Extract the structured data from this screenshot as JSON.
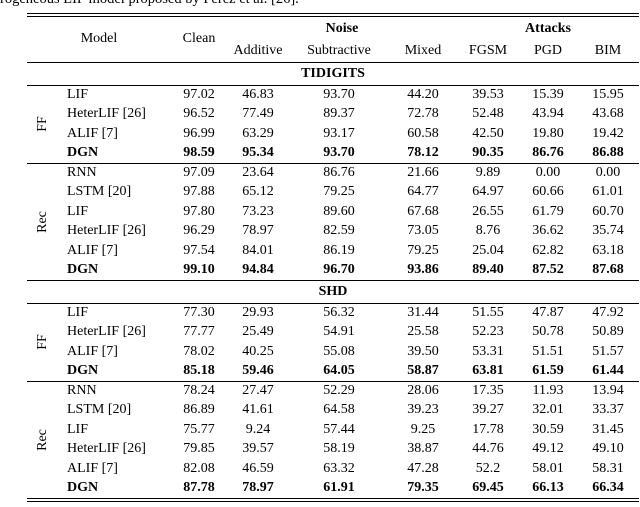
{
  "caption_fragment": "rogeneous LIF model proposed by Perez et al. [26].",
  "table": {
    "header": {
      "model": "Model",
      "clean": "Clean",
      "noise_group": "Noise",
      "attacks_group": "Attacks",
      "noise_cols": [
        "Additive",
        "Subtractive",
        "Mixed"
      ],
      "attack_cols": [
        "FGSM",
        "PGD",
        "BIM"
      ]
    },
    "sections": [
      {
        "title": "TIDIGITS",
        "groups": [
          {
            "label": "FF",
            "rows": [
              {
                "model": "LIF",
                "bold": false,
                "values": [
                  "97.02",
                  "46.83",
                  "93.70",
                  "44.20",
                  "39.53",
                  "15.39",
                  "15.95"
                ]
              },
              {
                "model": "HeterLIF [26]",
                "bold": false,
                "values": [
                  "96.52",
                  "77.49",
                  "89.37",
                  "72.78",
                  "52.48",
                  "43.94",
                  "43.68"
                ]
              },
              {
                "model": "ALIF [7]",
                "bold": false,
                "values": [
                  "96.99",
                  "63.29",
                  "93.17",
                  "60.58",
                  "42.50",
                  "19.80",
                  "19.42"
                ]
              },
              {
                "model": "DGN",
                "bold": true,
                "values": [
                  "98.59",
                  "95.34",
                  "93.70",
                  "78.12",
                  "90.35",
                  "86.76",
                  "86.88"
                ]
              }
            ]
          },
          {
            "label": "Rec",
            "rows": [
              {
                "model": "RNN",
                "bold": false,
                "values": [
                  "97.09",
                  "23.64",
                  "86.76",
                  "21.66",
                  "9.89",
                  "0.00",
                  "0.00"
                ]
              },
              {
                "model": "LSTM [20]",
                "bold": false,
                "values": [
                  "97.88",
                  "65.12",
                  "79.25",
                  "64.77",
                  "64.97",
                  "60.66",
                  "61.01"
                ]
              },
              {
                "model": "LIF",
                "bold": false,
                "values": [
                  "97.80",
                  "73.23",
                  "89.60",
                  "67.68",
                  "26.55",
                  "61.79",
                  "60.70"
                ]
              },
              {
                "model": "HeterLIF [26]",
                "bold": false,
                "values": [
                  "96.29",
                  "78.97",
                  "82.59",
                  "73.05",
                  "8.76",
                  "36.62",
                  "35.74"
                ]
              },
              {
                "model": "ALIF [7]",
                "bold": false,
                "values": [
                  "97.54",
                  "84.01",
                  "86.19",
                  "79.25",
                  "25.04",
                  "62.82",
                  "63.18"
                ]
              },
              {
                "model": "DGN",
                "bold": true,
                "values": [
                  "99.10",
                  "94.84",
                  "96.70",
                  "93.86",
                  "89.40",
                  "87.52",
                  "87.68"
                ]
              }
            ]
          }
        ]
      },
      {
        "title": "SHD",
        "groups": [
          {
            "label": "FF",
            "rows": [
              {
                "model": "LIF",
                "bold": false,
                "values": [
                  "77.30",
                  "29.93",
                  "56.32",
                  "31.44",
                  "51.55",
                  "47.87",
                  "47.92"
                ]
              },
              {
                "model": "HeterLIF [26]",
                "bold": false,
                "values": [
                  "77.77",
                  "25.49",
                  "54.91",
                  "25.58",
                  "52.23",
                  "50.78",
                  "50.89"
                ]
              },
              {
                "model": "ALIF [7]",
                "bold": false,
                "values": [
                  "78.02",
                  "40.25",
                  "55.08",
                  "39.50",
                  "53.31",
                  "51.51",
                  "51.57"
                ]
              },
              {
                "model": "DGN",
                "bold": true,
                "values": [
                  "85.18",
                  "59.46",
                  "64.05",
                  "58.87",
                  "63.81",
                  "61.59",
                  "61.44"
                ]
              }
            ]
          },
          {
            "label": "Rec",
            "rows": [
              {
                "model": "RNN",
                "bold": false,
                "values": [
                  "78.24",
                  "27.47",
                  "52.29",
                  "28.06",
                  "17.35",
                  "11.93",
                  "13.94"
                ]
              },
              {
                "model": "LSTM [20]",
                "bold": false,
                "values": [
                  "86.89",
                  "41.61",
                  "64.58",
                  "39.23",
                  "39.27",
                  "32.01",
                  "33.37"
                ]
              },
              {
                "model": "LIF",
                "bold": false,
                "values": [
                  "75.77",
                  "9.24",
                  "57.44",
                  "9.25",
                  "17.78",
                  "30.59",
                  "31.45"
                ]
              },
              {
                "model": "HeterLIF [26]",
                "bold": false,
                "values": [
                  "79.85",
                  "39.57",
                  "58.19",
                  "38.87",
                  "44.76",
                  "49.12",
                  "49.10"
                ]
              },
              {
                "model": "ALIF [7]",
                "bold": false,
                "values": [
                  "82.08",
                  "46.59",
                  "63.32",
                  "47.28",
                  "52.2",
                  "58.01",
                  "58.31"
                ]
              },
              {
                "model": "DGN",
                "bold": true,
                "values": [
                  "87.78",
                  "78.97",
                  "61.91",
                  "79.35",
                  "69.45",
                  "66.13",
                  "66.34"
                ]
              }
            ]
          }
        ]
      }
    ]
  }
}
